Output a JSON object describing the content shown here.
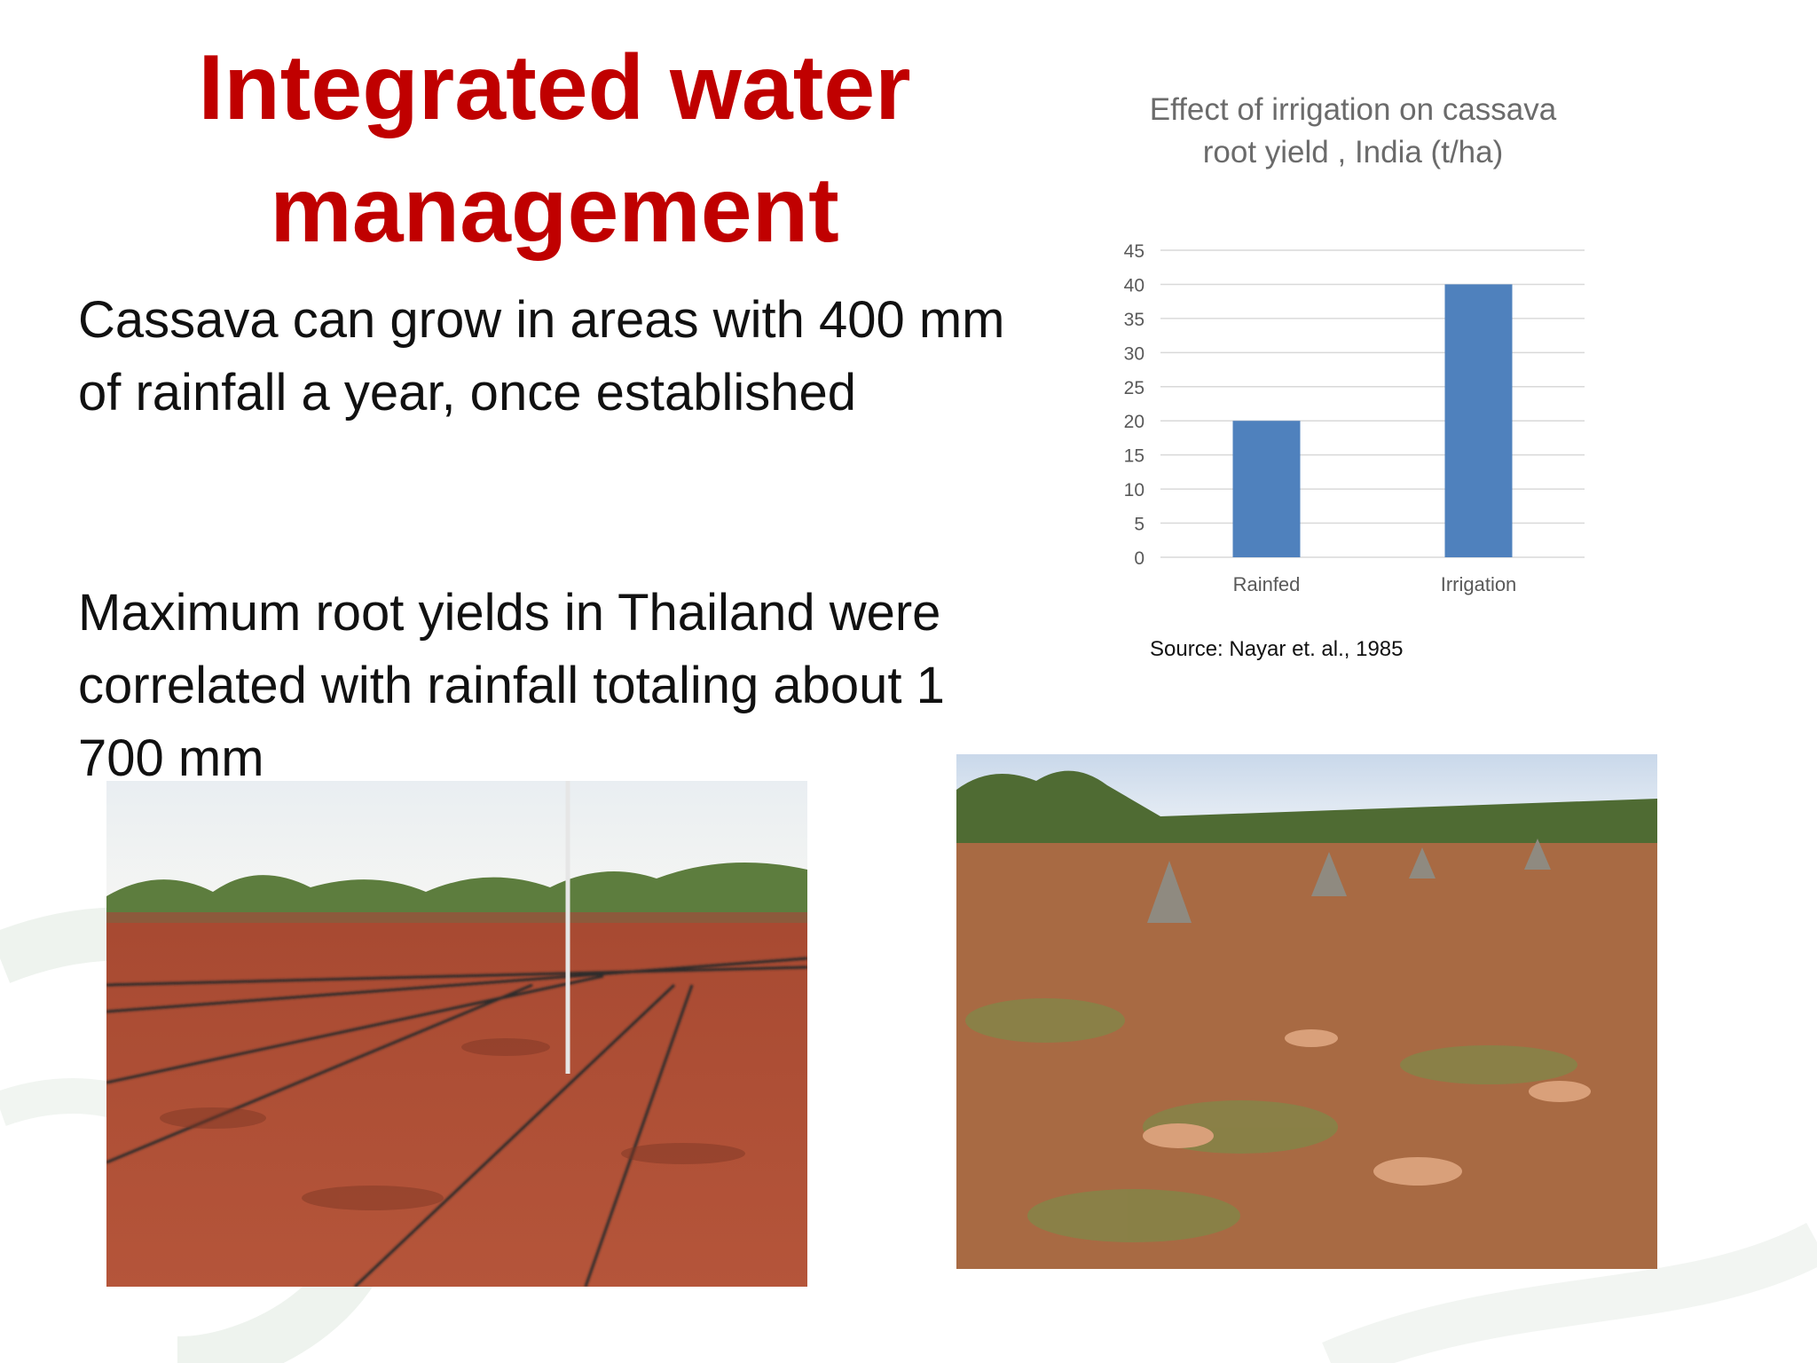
{
  "slide": {
    "title": "Integrated water management",
    "paragraph_1": "Cassava can grow in areas with 400 mm of rainfall a year, once established",
    "paragraph_2": "Maximum root yields in Thailand were correlated with rainfall totaling about 1 700 mm",
    "source": "Source: Nayar et. al., 1985"
  },
  "colors": {
    "title": "#c00000",
    "bar": "#4f81bd",
    "gridline": "#d9d9d9",
    "axis_text": "#595959"
  },
  "chart_data": {
    "type": "bar",
    "title": "Effect of irrigation on cassava root yield , India (t/ha)",
    "categories": [
      "Rainfed",
      "Irrigation"
    ],
    "values": [
      20,
      40
    ],
    "ylim": [
      0,
      45
    ],
    "yticks": [
      0,
      5,
      10,
      15,
      20,
      25,
      30,
      35,
      40,
      45
    ],
    "grid": true,
    "legend": "none"
  },
  "photos": {
    "left": "photo of red soil field with drip irrigation lines",
    "right": "photo of harvested cassava roots piled in a field"
  }
}
